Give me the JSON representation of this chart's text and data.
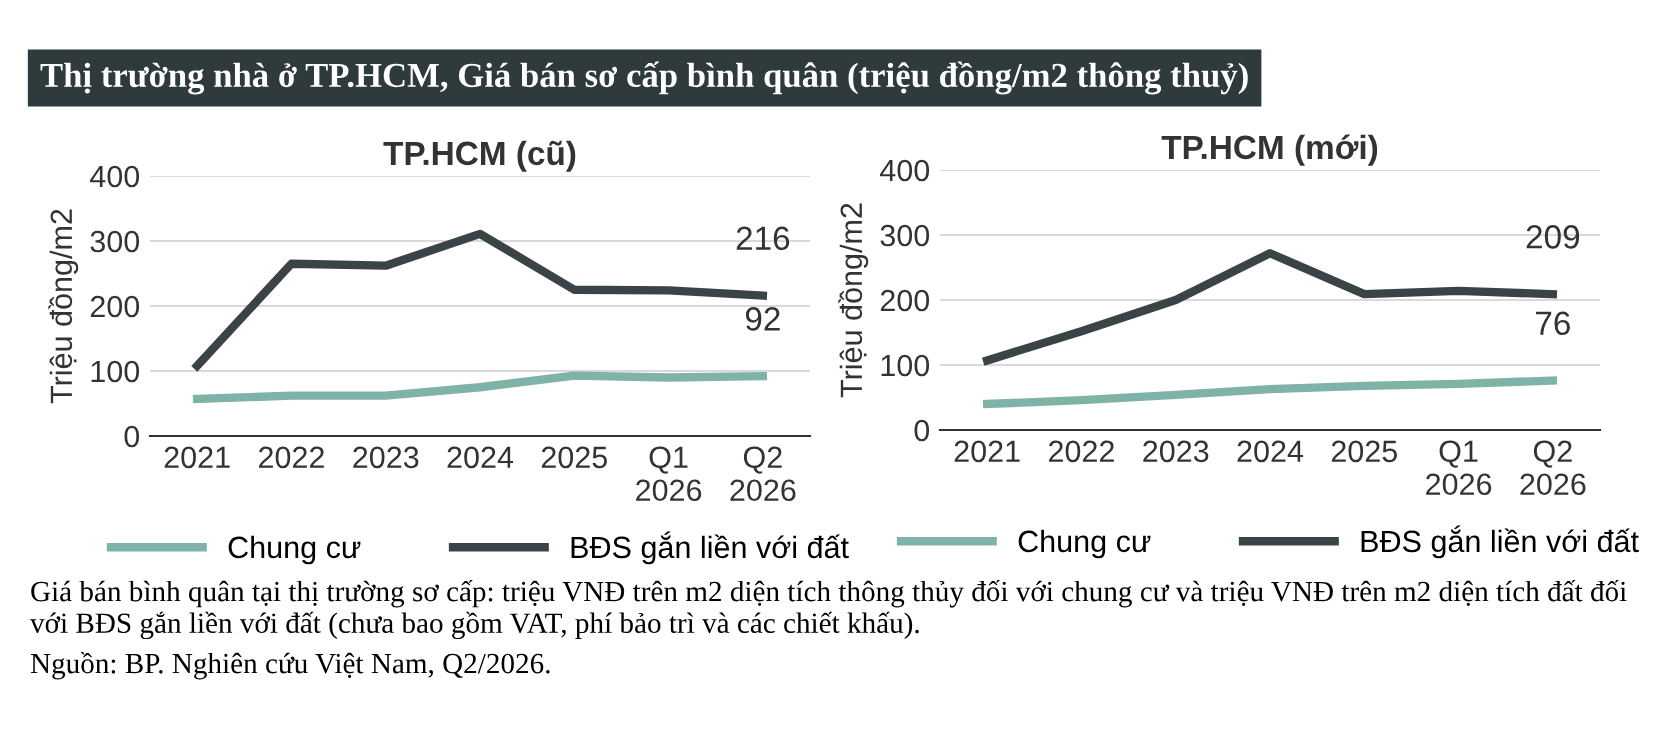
{
  "chart_data": [
    {
      "type": "line",
      "title": "TP.HCM (cũ)",
      "ylabel": "Triệu đồng/m2",
      "categories": [
        "2021",
        "2022",
        "2023",
        "2024",
        "2025",
        "Q1\n2026",
        "Q2\n2026"
      ],
      "series": [
        {
          "name": "Chung cư",
          "color": "#7fb3a8",
          "values": [
            57,
            62,
            62,
            75,
            93,
            90,
            92
          ],
          "value_labels": [
            null,
            null,
            null,
            null,
            null,
            null,
            "92"
          ]
        },
        {
          "name": "BĐS gắn liền với đất",
          "color": "#3a4447",
          "values": [
            108,
            265,
            262,
            311,
            225,
            224,
            216
          ],
          "value_labels": [
            null,
            null,
            null,
            null,
            null,
            null,
            "216"
          ]
        }
      ],
      "ylim": [
        0,
        400
      ],
      "yticks": [
        0,
        100,
        200,
        300,
        400
      ],
      "grid": "y",
      "legend": "bottom",
      "annotations": [
        "Thị trường nhà ở TP.HCM, Giá bán sơ cấp bình quân (triệu đồng/m2 thông thuỷ)",
        "Giá bán bình quân tại thị trường sơ cấp: triệu VNĐ trên m2 diện tích thông thủy đối với chung cư và triệu VNĐ trên m2 diện tích đất đối với BĐS gắn liền với đất (chưa bao gồm VAT, phí bảo trì và các chiết khấu).",
        "Nguồn: BP. Nghiên cứu Việt Nam, Q2/2026."
      ]
    },
    {
      "type": "line",
      "title": "TP.HCM (mới)",
      "ylabel": "Triệu đồng/m2",
      "categories": [
        "2021",
        "2022",
        "2023",
        "2024",
        "2025",
        "Q1\n2026",
        "Q2\n2026"
      ],
      "series": [
        {
          "name": "Chung cư",
          "color": "#7fb3a8",
          "values": [
            40,
            46,
            54,
            63,
            68,
            71,
            76
          ],
          "value_labels": [
            null,
            null,
            null,
            null,
            null,
            null,
            "76"
          ]
        },
        {
          "name": "BĐS gắn liền với đất",
          "color": "#3a4447",
          "values": [
            107,
            152,
            200,
            272,
            209,
            214,
            209
          ],
          "value_labels": [
            null,
            null,
            null,
            null,
            null,
            null,
            "209"
          ]
        }
      ],
      "ylim": [
        0,
        400
      ],
      "yticks": [
        0,
        100,
        200,
        300,
        400
      ],
      "grid": "y",
      "legend": "bottom"
    }
  ]
}
